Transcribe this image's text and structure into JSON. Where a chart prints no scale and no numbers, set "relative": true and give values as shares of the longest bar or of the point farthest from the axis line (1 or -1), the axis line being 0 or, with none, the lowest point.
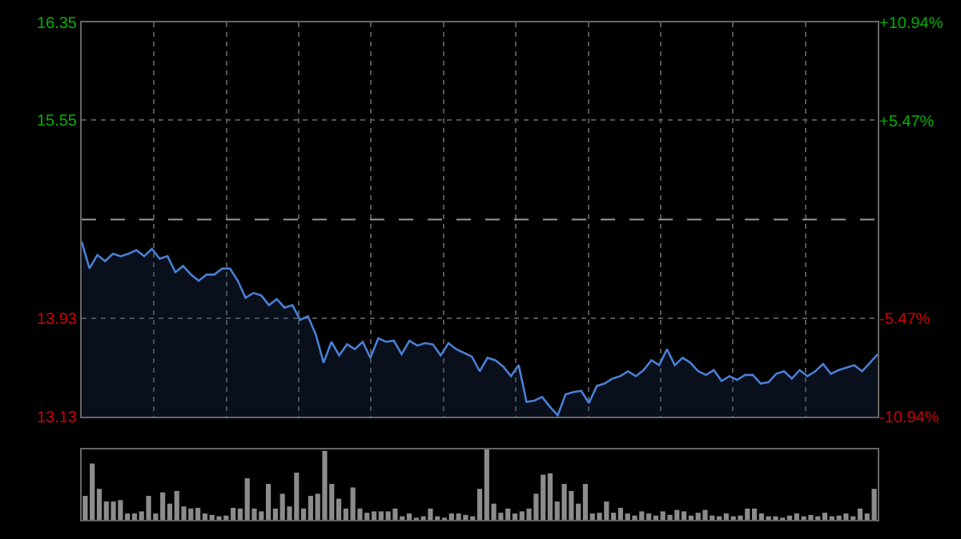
{
  "chart_data": [
    {
      "type": "area",
      "categories": [
        null,
        null,
        null,
        null,
        null,
        null,
        null,
        null,
        null,
        null,
        null,
        null,
        null,
        null,
        null,
        null,
        null,
        null,
        null,
        null,
        null,
        null,
        null,
        null,
        null,
        null,
        null,
        null,
        null,
        null,
        null,
        null,
        null,
        null,
        null,
        null,
        null,
        null,
        null,
        null,
        null,
        null,
        null,
        null,
        null,
        null,
        null,
        null,
        null,
        null,
        null,
        null,
        null,
        null,
        null,
        null,
        null,
        null,
        null,
        null,
        null,
        null,
        null,
        null,
        null,
        null,
        null,
        null,
        null,
        null,
        null,
        null,
        null,
        null,
        null,
        null,
        null,
        null,
        null,
        null,
        null,
        null,
        null,
        null,
        null,
        null,
        null,
        null,
        null,
        null,
        null,
        null,
        null,
        null,
        null,
        null,
        null,
        null,
        null,
        null,
        null,
        null,
        null
      ],
      "series": [
        {
          "color": "#4a7fd4",
          "values": [
            14.56,
            14.34,
            14.45,
            14.4,
            14.46,
            14.44,
            14.46,
            14.49,
            14.44,
            14.5,
            14.42,
            14.44,
            14.31,
            14.36,
            14.29,
            14.24,
            14.29,
            14.29,
            14.34,
            14.34,
            14.24,
            14.1,
            14.14,
            14.12,
            14.04,
            14.09,
            14.02,
            14.04,
            13.92,
            13.95,
            13.8,
            13.57,
            13.74,
            13.63,
            13.72,
            13.68,
            13.74,
            13.61,
            13.77,
            13.74,
            13.75,
            13.64,
            13.75,
            13.71,
            13.73,
            13.72,
            13.63,
            13.73,
            13.68,
            13.65,
            13.62,
            13.5,
            13.61,
            13.59,
            13.54,
            13.46,
            13.55,
            13.25,
            13.26,
            13.29,
            13.21,
            13.14,
            13.31,
            13.33,
            13.34,
            13.24,
            13.38,
            13.4,
            13.44,
            13.46,
            13.5,
            13.46,
            13.51,
            13.59,
            13.55,
            13.68,
            13.55,
            13.61,
            13.57,
            13.5,
            13.47,
            13.51,
            13.42,
            13.46,
            13.43,
            13.47,
            13.47,
            13.4,
            13.41,
            13.48,
            13.5,
            13.44,
            13.51,
            13.46,
            13.5,
            13.56,
            13.48,
            13.51,
            13.53,
            13.55,
            13.5,
            13.57,
            13.64
          ]
        }
      ],
      "ylim": [
        13.13,
        16.35
      ],
      "yticks": [
        13.13,
        13.93,
        15.55,
        16.35
      ],
      "y2lim": [
        -10.94,
        10.94
      ],
      "y2ticks": [
        {
          "value": -10.94,
          "label": "-10.94%"
        },
        {
          "value": -5.47,
          "label": "-5.47%"
        },
        {
          "value": 5.47,
          "label": "+5.47%"
        },
        {
          "value": 10.94,
          "label": "+10.94%"
        }
      ],
      "ref_lines": [
        {
          "axis": "y",
          "value": 14.74,
          "line_style": "dashed"
        }
      ],
      "grid": true
    },
    {
      "type": "bar",
      "relative": true,
      "color": "#8c8c8c",
      "categories": [
        null,
        null,
        null,
        null,
        null,
        null,
        null,
        null,
        null,
        null,
        null,
        null,
        null,
        null,
        null,
        null,
        null,
        null,
        null,
        null,
        null,
        null,
        null,
        null,
        null,
        null,
        null,
        null,
        null,
        null,
        null,
        null,
        null,
        null,
        null,
        null,
        null,
        null,
        null,
        null,
        null,
        null,
        null,
        null,
        null,
        null,
        null,
        null,
        null,
        null,
        null,
        null,
        null,
        null,
        null,
        null,
        null,
        null,
        null,
        null,
        null,
        null,
        null,
        null,
        null,
        null,
        null,
        null,
        null,
        null,
        null,
        null,
        null,
        null,
        null,
        null,
        null,
        null,
        null,
        null,
        null,
        null,
        null,
        null,
        null,
        null,
        null,
        null,
        null,
        null,
        null,
        null,
        null,
        null,
        null,
        null,
        null,
        null,
        null,
        null,
        null,
        null,
        null,
        null,
        null,
        null,
        null,
        null,
        null,
        null,
        null,
        null,
        null
      ],
      "values": [
        0.34,
        0.8,
        0.44,
        0.26,
        0.26,
        0.28,
        0.09,
        0.09,
        0.12,
        0.34,
        0.09,
        0.39,
        0.23,
        0.41,
        0.19,
        0.16,
        0.17,
        0.09,
        0.07,
        0.05,
        0.06,
        0.17,
        0.16,
        0.59,
        0.16,
        0.12,
        0.51,
        0.16,
        0.37,
        0.19,
        0.67,
        0.16,
        0.34,
        0.37,
        0.98,
        0.51,
        0.3,
        0.16,
        0.46,
        0.16,
        0.1,
        0.12,
        0.12,
        0.12,
        0.16,
        0.05,
        0.09,
        0.03,
        0.05,
        0.16,
        0.05,
        0.03,
        0.09,
        0.09,
        0.07,
        0.05,
        0.44,
        1,
        0.23,
        0.1,
        0.16,
        0.09,
        0.12,
        0.16,
        0.37,
        0.64,
        0.66,
        0.26,
        0.51,
        0.41,
        0.23,
        0.51,
        0.09,
        0.1,
        0.26,
        0.1,
        0.17,
        0.09,
        0.06,
        0.12,
        0.09,
        0.06,
        0.12,
        0.07,
        0.14,
        0.12,
        0.06,
        0.1,
        0.14,
        0.06,
        0.05,
        0.09,
        0.05,
        0.06,
        0.16,
        0.16,
        0.09,
        0.05,
        0.05,
        0.03,
        0.06,
        0.09,
        0.05,
        0.07,
        0.05,
        0.1,
        0.05,
        0.06,
        0.09,
        0.05,
        0.16,
        0.09,
        0.44
      ]
    }
  ]
}
